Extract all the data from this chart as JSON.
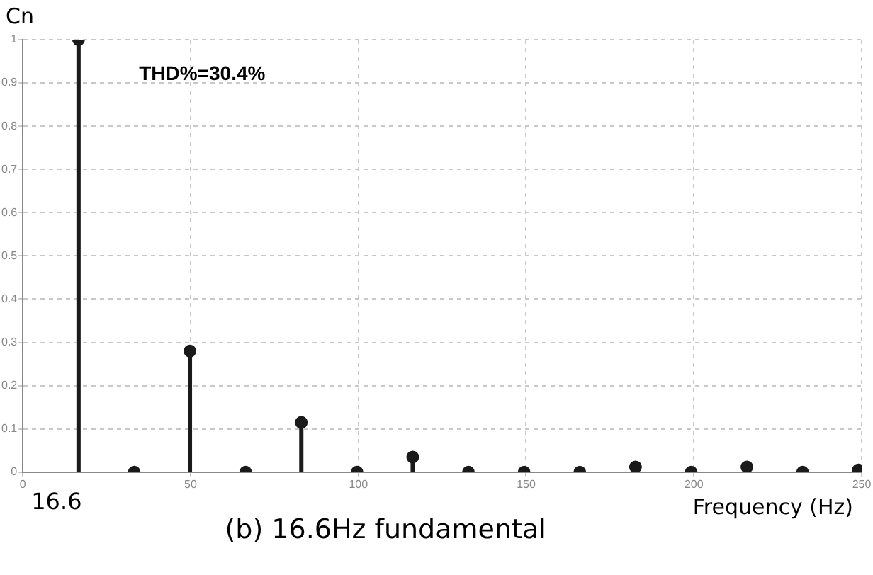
{
  "chart_data": {
    "type": "lollipop",
    "ylabel": "Cn",
    "xlabel": "Frequency (Hz)",
    "x": [
      16.6,
      33.2,
      49.8,
      66.4,
      83,
      99.6,
      116.2,
      132.8,
      149.4,
      166,
      182.6,
      199.2,
      215.8,
      232.4,
      249
    ],
    "series": [
      {
        "color": "#1a1a1a",
        "values": [
          1,
          0,
          0.28,
          0,
          0.115,
          0,
          0.035,
          0,
          0,
          0,
          0.012,
          0,
          0.012,
          0,
          0.005
        ]
      }
    ],
    "xlim": [
      0,
      250
    ],
    "xticks": [
      0,
      50,
      100,
      150,
      200,
      250
    ],
    "ylim": [
      0,
      1
    ],
    "yticks": [
      0,
      0.1,
      0.2,
      0.3,
      0.4,
      0.5,
      0.6,
      0.7,
      0.8,
      0.9,
      1
    ],
    "grid": true,
    "marker": "circle",
    "annotations": [
      "THD%=30.4%",
      "16.6",
      "(b) 16.6Hz fundamental"
    ]
  }
}
